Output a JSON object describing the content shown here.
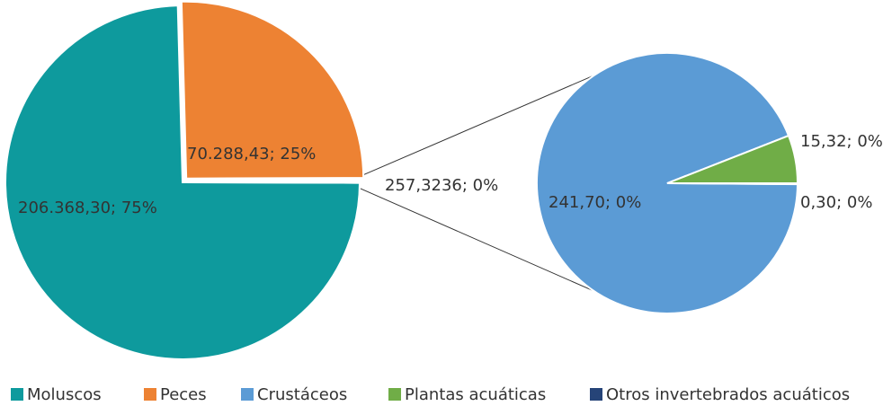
{
  "chart_data": {
    "type": "pie-of-pie",
    "primary": {
      "categories": [
        "Moluscos",
        "Peces",
        null
      ],
      "values": [
        206368.3,
        70288.43,
        257.3236
      ],
      "value_labels": [
        "206.368,30; 75%",
        "70.288,43; 25%",
        "257,3236; 0%"
      ],
      "colors": [
        "#0e9a9d",
        "#ed8233",
        "#ffffff"
      ]
    },
    "secondary": {
      "categories": [
        "Crustáceos",
        "Plantas acuáticas",
        "Otros invertebrados acuáticos"
      ],
      "values": [
        241.7,
        15.32,
        0.3
      ],
      "value_labels": [
        "241,70; 0%",
        "15,32; 0%",
        "0,30; 0%"
      ],
      "colors": [
        "#5b9bd5",
        "#70ad47",
        "#264478"
      ]
    },
    "legend": "bottom"
  }
}
